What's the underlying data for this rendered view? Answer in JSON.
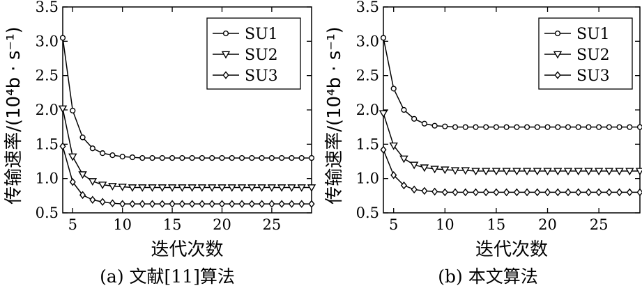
{
  "chart_data": [
    {
      "type": "line",
      "caption": "(a) 文献[11]算法",
      "xlabel": "迭代次数",
      "ylabel": "传输速率/(10⁴b · s⁻¹)",
      "xlim": [
        4,
        29
      ],
      "ylim": [
        0.5,
        3.5
      ],
      "xticks": [
        "5",
        "10",
        "15",
        "20",
        "25"
      ],
      "yticks": [
        "0.5",
        "1.0",
        "1.5",
        "2.0",
        "2.5",
        "3.0",
        "3.5"
      ],
      "legend": "top-right",
      "x": [
        4,
        5,
        6,
        7,
        8,
        9,
        10,
        11,
        12,
        13,
        14,
        15,
        16,
        17,
        18,
        19,
        20,
        21,
        22,
        23,
        24,
        25,
        26,
        27,
        28,
        29
      ],
      "series": [
        {
          "name": "SU1",
          "marker": "circle",
          "values": [
            3.05,
            1.99,
            1.6,
            1.44,
            1.37,
            1.34,
            1.32,
            1.31,
            1.3,
            1.3,
            1.3,
            1.3,
            1.3,
            1.3,
            1.3,
            1.3,
            1.3,
            1.3,
            1.3,
            1.3,
            1.3,
            1.3,
            1.3,
            1.3,
            1.3,
            1.3
          ]
        },
        {
          "name": "SU2",
          "marker": "triangle-down",
          "values": [
            2.02,
            1.32,
            1.06,
            0.96,
            0.91,
            0.89,
            0.88,
            0.87,
            0.87,
            0.87,
            0.87,
            0.87,
            0.87,
            0.87,
            0.87,
            0.87,
            0.87,
            0.87,
            0.87,
            0.87,
            0.87,
            0.87,
            0.87,
            0.87,
            0.87,
            0.87
          ]
        },
        {
          "name": "SU3",
          "marker": "diamond",
          "values": [
            1.47,
            0.95,
            0.76,
            0.69,
            0.66,
            0.64,
            0.63,
            0.63,
            0.63,
            0.63,
            0.63,
            0.63,
            0.63,
            0.63,
            0.63,
            0.63,
            0.63,
            0.63,
            0.63,
            0.63,
            0.63,
            0.63,
            0.63,
            0.63,
            0.63,
            0.63
          ]
        }
      ]
    },
    {
      "type": "line",
      "caption": "(b) 本文算法",
      "xlabel": "迭代次数",
      "ylabel": "传输速率/(10⁴b · s⁻¹)",
      "xlim": [
        4,
        29
      ],
      "ylim": [
        0.5,
        3.5
      ],
      "xticks": [
        "5",
        "10",
        "15",
        "20",
        "25"
      ],
      "yticks": [
        "0.5",
        "1.0",
        "1.5",
        "2.0",
        "2.5",
        "3.0",
        "3.5"
      ],
      "legend": "top-right",
      "x": [
        4,
        5,
        6,
        7,
        8,
        9,
        10,
        11,
        12,
        13,
        14,
        15,
        16,
        17,
        18,
        19,
        20,
        21,
        22,
        23,
        24,
        25,
        26,
        27,
        28,
        29
      ],
      "series": [
        {
          "name": "SU1",
          "marker": "circle",
          "values": [
            3.05,
            2.31,
            2.0,
            1.87,
            1.8,
            1.77,
            1.76,
            1.75,
            1.75,
            1.75,
            1.75,
            1.75,
            1.75,
            1.75,
            1.75,
            1.75,
            1.75,
            1.75,
            1.75,
            1.75,
            1.75,
            1.75,
            1.75,
            1.75,
            1.75,
            1.75
          ]
        },
        {
          "name": "SU2",
          "marker": "triangle-down",
          "values": [
            1.95,
            1.48,
            1.29,
            1.2,
            1.16,
            1.14,
            1.13,
            1.12,
            1.12,
            1.11,
            1.11,
            1.11,
            1.11,
            1.11,
            1.11,
            1.11,
            1.11,
            1.11,
            1.11,
            1.11,
            1.11,
            1.11,
            1.11,
            1.11,
            1.11,
            1.11
          ]
        },
        {
          "name": "SU3",
          "marker": "diamond",
          "values": [
            1.42,
            1.05,
            0.9,
            0.84,
            0.82,
            0.81,
            0.8,
            0.8,
            0.8,
            0.8,
            0.8,
            0.8,
            0.8,
            0.8,
            0.8,
            0.8,
            0.8,
            0.8,
            0.8,
            0.8,
            0.8,
            0.8,
            0.8,
            0.8,
            0.8,
            0.8
          ]
        }
      ]
    }
  ]
}
